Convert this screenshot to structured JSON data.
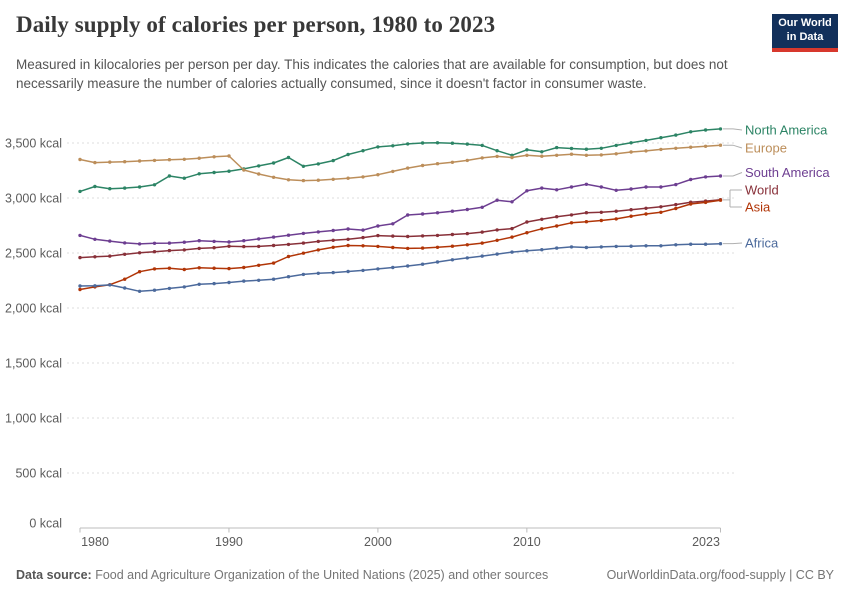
{
  "header": {
    "title": "Daily supply of calories per person, 1980 to 2023",
    "subtitle": "Measured in kilocalories per person per day. This indicates the calories that are available for consumption, but does not necessarily measure the number of calories actually consumed, since it doesn't factor in consumer waste.",
    "logo": {
      "line1": "Our World",
      "line2": "in Data"
    }
  },
  "footer": {
    "source_label": "Data source:",
    "source_text": " Food and Agriculture Organization of the United Nations (2025) and other sources",
    "credit": "OurWorldinData.org/food-supply | CC BY"
  },
  "colors": {
    "grid": "#dcdcdc",
    "axis": "#bcbcbc",
    "tick_text": "#5b5b5b",
    "connector": "#b0b0b0",
    "logo_bg": "#12305b",
    "logo_stripe": "#d7382d"
  },
  "chart_data": {
    "type": "line",
    "title": "Daily supply of calories per person, 1980 to 2023",
    "unit": "kcal",
    "grid": "horizontal dashed",
    "legend_position": "right",
    "xlim": [
      1980,
      2023
    ],
    "ylim": [
      0,
      3500
    ],
    "x": [
      1980,
      1981,
      1982,
      1983,
      1984,
      1985,
      1986,
      1987,
      1988,
      1989,
      1990,
      1991,
      1992,
      1993,
      1994,
      1995,
      1996,
      1997,
      1998,
      1999,
      2000,
      2001,
      2002,
      2003,
      2004,
      2005,
      2006,
      2007,
      2008,
      2009,
      2010,
      2011,
      2012,
      2013,
      2014,
      2015,
      2016,
      2017,
      2018,
      2019,
      2020,
      2021,
      2022,
      2023
    ],
    "x_ticks": [
      {
        "year": 1980,
        "label": "1980"
      },
      {
        "year": 1990,
        "label": "1990"
      },
      {
        "year": 2000,
        "label": "2000"
      },
      {
        "year": 2010,
        "label": "2010"
      },
      {
        "year": 2023,
        "label": "2023"
      }
    ],
    "y_ticks": [
      {
        "value": 0,
        "label": "0 kcal"
      },
      {
        "value": 500,
        "label": "500 kcal"
      },
      {
        "value": 1000,
        "label": "1,000 kcal"
      },
      {
        "value": 1500,
        "label": "1,500 kcal"
      },
      {
        "value": 2000,
        "label": "2,000 kcal"
      },
      {
        "value": 2500,
        "label": "2,500 kcal"
      },
      {
        "value": 3000,
        "label": "3,000 kcal"
      },
      {
        "value": 3500,
        "label": "3,500 kcal"
      }
    ],
    "series": [
      {
        "name": "North America",
        "color": "#2C8465",
        "values": [
          3060,
          3105,
          3085,
          3090,
          3100,
          3120,
          3200,
          3180,
          3220,
          3232,
          3244,
          3265,
          3292,
          3318,
          3368,
          3288,
          3310,
          3340,
          3395,
          3430,
          3465,
          3475,
          3492,
          3500,
          3502,
          3498,
          3490,
          3478,
          3430,
          3388,
          3438,
          3420,
          3458,
          3450,
          3444,
          3452,
          3478,
          3502,
          3524,
          3548,
          3572,
          3602,
          3618,
          3628
        ]
      },
      {
        "name": "Europe",
        "color": "#BC8E5A",
        "values": [
          3350,
          3322,
          3326,
          3330,
          3336,
          3342,
          3348,
          3352,
          3362,
          3375,
          3382,
          3255,
          3218,
          3188,
          3165,
          3158,
          3162,
          3170,
          3180,
          3192,
          3212,
          3242,
          3272,
          3295,
          3312,
          3325,
          3342,
          3365,
          3378,
          3368,
          3388,
          3380,
          3388,
          3398,
          3388,
          3392,
          3402,
          3418,
          3428,
          3442,
          3452,
          3462,
          3470,
          3480
        ]
      },
      {
        "name": "South America",
        "color": "#6D3E91",
        "values": [
          2660,
          2625,
          2608,
          2592,
          2583,
          2588,
          2590,
          2598,
          2612,
          2605,
          2600,
          2612,
          2628,
          2645,
          2662,
          2678,
          2692,
          2705,
          2718,
          2708,
          2745,
          2765,
          2845,
          2855,
          2865,
          2880,
          2895,
          2915,
          2980,
          2965,
          3065,
          3090,
          3075,
          3100,
          3125,
          3100,
          3070,
          3082,
          3100,
          3100,
          3122,
          3168,
          3192,
          3200
        ]
      },
      {
        "name": "World",
        "color": "#883039",
        "values": [
          2458,
          2465,
          2472,
          2488,
          2502,
          2512,
          2522,
          2528,
          2542,
          2548,
          2562,
          2558,
          2560,
          2568,
          2578,
          2590,
          2605,
          2615,
          2625,
          2640,
          2658,
          2654,
          2650,
          2655,
          2660,
          2668,
          2676,
          2690,
          2710,
          2722,
          2782,
          2806,
          2830,
          2846,
          2866,
          2870,
          2880,
          2894,
          2906,
          2920,
          2940,
          2962,
          2972,
          2985
        ]
      },
      {
        "name": "Asia",
        "color": "#B13507",
        "values": [
          2168,
          2192,
          2212,
          2262,
          2330,
          2355,
          2362,
          2350,
          2365,
          2362,
          2358,
          2368,
          2388,
          2408,
          2468,
          2498,
          2528,
          2552,
          2568,
          2565,
          2560,
          2550,
          2542,
          2545,
          2552,
          2562,
          2575,
          2590,
          2615,
          2645,
          2685,
          2720,
          2745,
          2775,
          2785,
          2795,
          2810,
          2835,
          2855,
          2870,
          2905,
          2945,
          2960,
          2980
        ]
      },
      {
        "name": "Africa",
        "color": "#4C6A9C",
        "values": [
          2200,
          2202,
          2210,
          2182,
          2152,
          2162,
          2178,
          2192,
          2215,
          2222,
          2232,
          2245,
          2252,
          2262,
          2285,
          2305,
          2315,
          2322,
          2332,
          2342,
          2355,
          2368,
          2382,
          2398,
          2418,
          2438,
          2455,
          2472,
          2490,
          2508,
          2520,
          2530,
          2545,
          2555,
          2550,
          2555,
          2560,
          2562,
          2565,
          2565,
          2575,
          2580,
          2580,
          2585
        ]
      }
    ]
  }
}
